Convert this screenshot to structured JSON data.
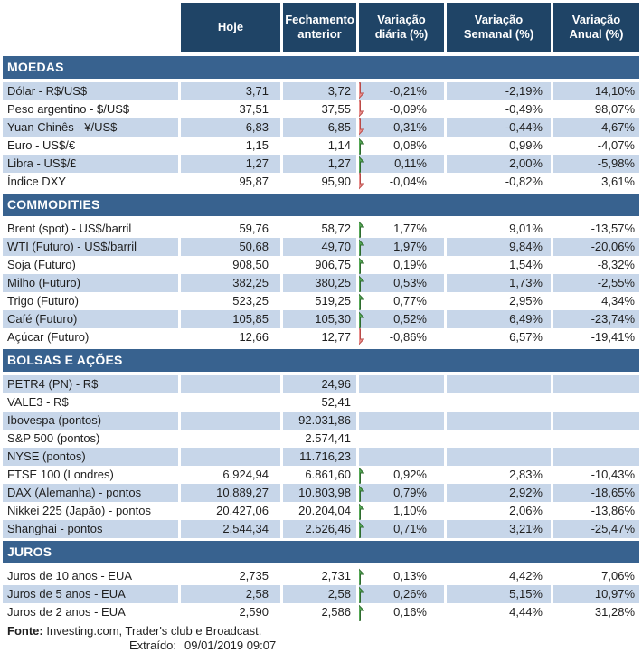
{
  "colors": {
    "header_bg": "#1f4466",
    "band_bg": "#38628f",
    "row_shaded": "#c7d6e9",
    "text": "#1f1f1f",
    "up_fill": "#55a755",
    "up_border": "#2e6b2e",
    "down_fill": "#e9908d",
    "down_border": "#ba4a47"
  },
  "table": {
    "columns": [
      "",
      "Hoje",
      "Fechamento anterior",
      "Variação diária (%)",
      "Variação Semanal (%)",
      "Variação Anual (%)"
    ]
  },
  "sections": [
    {
      "title": "MOEDAS",
      "rows": [
        {
          "label": "Dólar - R$/US$",
          "hoje": "3,71",
          "fechamento": "3,72",
          "arrow": "down",
          "diaria": "-0,21%",
          "semanal": "-2,19%",
          "anual": "14,10%",
          "shaded": true
        },
        {
          "label": "Peso argentino - $/US$",
          "hoje": "37,51",
          "fechamento": "37,55",
          "arrow": "down",
          "diaria": "-0,09%",
          "semanal": "-0,49%",
          "anual": "98,07%",
          "shaded": false
        },
        {
          "label": "Yuan Chinês - ¥/US$",
          "hoje": "6,83",
          "fechamento": "6,85",
          "arrow": "down",
          "diaria": "-0,31%",
          "semanal": "-0,44%",
          "anual": "4,67%",
          "shaded": true
        },
        {
          "label": "Euro - US$/€",
          "hoje": "1,15",
          "fechamento": "1,14",
          "arrow": "up",
          "diaria": "0,08%",
          "semanal": "0,99%",
          "anual": "-4,07%",
          "shaded": false
        },
        {
          "label": "Libra - US$/£",
          "hoje": "1,27",
          "fechamento": "1,27",
          "arrow": "up",
          "diaria": "0,11%",
          "semanal": "2,00%",
          "anual": "-5,98%",
          "shaded": true
        },
        {
          "label": "Índice DXY",
          "hoje": "95,87",
          "fechamento": "95,90",
          "arrow": "down",
          "diaria": "-0,04%",
          "semanal": "-0,82%",
          "anual": "3,61%",
          "shaded": false
        }
      ]
    },
    {
      "title": "COMMODITIES",
      "rows": [
        {
          "label": "Brent (spot) - US$/barril",
          "hoje": "59,76",
          "fechamento": "58,72",
          "arrow": "up",
          "diaria": "1,77%",
          "semanal": "9,01%",
          "anual": "-13,57%",
          "shaded": false
        },
        {
          "label": "WTI (Futuro) - US$/barril",
          "hoje": "50,68",
          "fechamento": "49,70",
          "arrow": "up",
          "diaria": "1,97%",
          "semanal": "9,84%",
          "anual": "-20,06%",
          "shaded": true
        },
        {
          "label": "Soja (Futuro)",
          "hoje": "908,50",
          "fechamento": "906,75",
          "arrow": "up",
          "diaria": "0,19%",
          "semanal": "1,54%",
          "anual": "-8,32%",
          "shaded": false
        },
        {
          "label": "Milho (Futuro)",
          "hoje": "382,25",
          "fechamento": "380,25",
          "arrow": "up",
          "diaria": "0,53%",
          "semanal": "1,73%",
          "anual": "-2,55%",
          "shaded": true
        },
        {
          "label": "Trigo (Futuro)",
          "hoje": "523,25",
          "fechamento": "519,25",
          "arrow": "up",
          "diaria": "0,77%",
          "semanal": "2,95%",
          "anual": "4,34%",
          "shaded": false
        },
        {
          "label": "Café (Futuro)",
          "hoje": "105,85",
          "fechamento": "105,30",
          "arrow": "up",
          "diaria": "0,52%",
          "semanal": "6,49%",
          "anual": "-23,74%",
          "shaded": true
        },
        {
          "label": "Açúcar (Futuro)",
          "hoje": "12,66",
          "fechamento": "12,77",
          "arrow": "down",
          "diaria": "-0,86%",
          "semanal": "6,57%",
          "anual": "-19,41%",
          "shaded": false
        }
      ]
    },
    {
      "title": "BOLSAS E AÇÕES",
      "rows": [
        {
          "label": "PETR4 (PN) - R$",
          "hoje": "",
          "fechamento": "24,96",
          "arrow": "none",
          "diaria": "",
          "semanal": "",
          "anual": "",
          "shaded": true
        },
        {
          "label": "VALE3 - R$",
          "hoje": "",
          "fechamento": "52,41",
          "arrow": "none",
          "diaria": "",
          "semanal": "",
          "anual": "",
          "shaded": false
        },
        {
          "label": "Ibovespa (pontos)",
          "hoje": "",
          "fechamento": "92.031,86",
          "arrow": "none",
          "diaria": "",
          "semanal": "",
          "anual": "",
          "shaded": true
        },
        {
          "label": "S&P 500 (pontos)",
          "hoje": "",
          "fechamento": "2.574,41",
          "arrow": "none",
          "diaria": "",
          "semanal": "",
          "anual": "",
          "shaded": false
        },
        {
          "label": "NYSE (pontos)",
          "hoje": "",
          "fechamento": "11.716,23",
          "arrow": "none",
          "diaria": "",
          "semanal": "",
          "anual": "",
          "shaded": true
        },
        {
          "label": "FTSE 100 (Londres)",
          "hoje": "6.924,94",
          "fechamento": "6.861,60",
          "arrow": "up",
          "diaria": "0,92%",
          "semanal": "2,83%",
          "anual": "-10,43%",
          "shaded": false
        },
        {
          "label": "DAX (Alemanha) - pontos",
          "hoje": "10.889,27",
          "fechamento": "10.803,98",
          "arrow": "up",
          "diaria": "0,79%",
          "semanal": "2,92%",
          "anual": "-18,65%",
          "shaded": true
        },
        {
          "label": "Nikkei 225 (Japão) - pontos",
          "hoje": "20.427,06",
          "fechamento": "20.204,04",
          "arrow": "up",
          "diaria": "1,10%",
          "semanal": "2,06%",
          "anual": "-13,86%",
          "shaded": false
        },
        {
          "label": "Shanghai - pontos",
          "hoje": "2.544,34",
          "fechamento": "2.526,46",
          "arrow": "up",
          "diaria": "0,71%",
          "semanal": "3,21%",
          "anual": "-25,47%",
          "shaded": true
        }
      ]
    },
    {
      "title": "JUROS",
      "rows": [
        {
          "label": "Juros de 10 anos - EUA",
          "hoje": "2,735",
          "fechamento": "2,731",
          "arrow": "up",
          "diaria": "0,13%",
          "semanal": "4,42%",
          "anual": "7,06%",
          "shaded": false
        },
        {
          "label": "Juros de 5 anos - EUA",
          "hoje": "2,58",
          "fechamento": "2,58",
          "arrow": "up",
          "diaria": "0,26%",
          "semanal": "5,15%",
          "anual": "10,97%",
          "shaded": true
        },
        {
          "label": "Juros de 2 anos - EUA",
          "hoje": "2,590",
          "fechamento": "2,586",
          "arrow": "up",
          "diaria": "0,16%",
          "semanal": "4,44%",
          "anual": "31,28%",
          "shaded": false
        }
      ]
    }
  ],
  "footer": {
    "fonte_label": "Fonte:",
    "fonte_text": " Investing.com, Trader's club e Broadcast.",
    "extraido_label": "Extraído:",
    "extraido_value": "09/01/2019 09:07"
  }
}
